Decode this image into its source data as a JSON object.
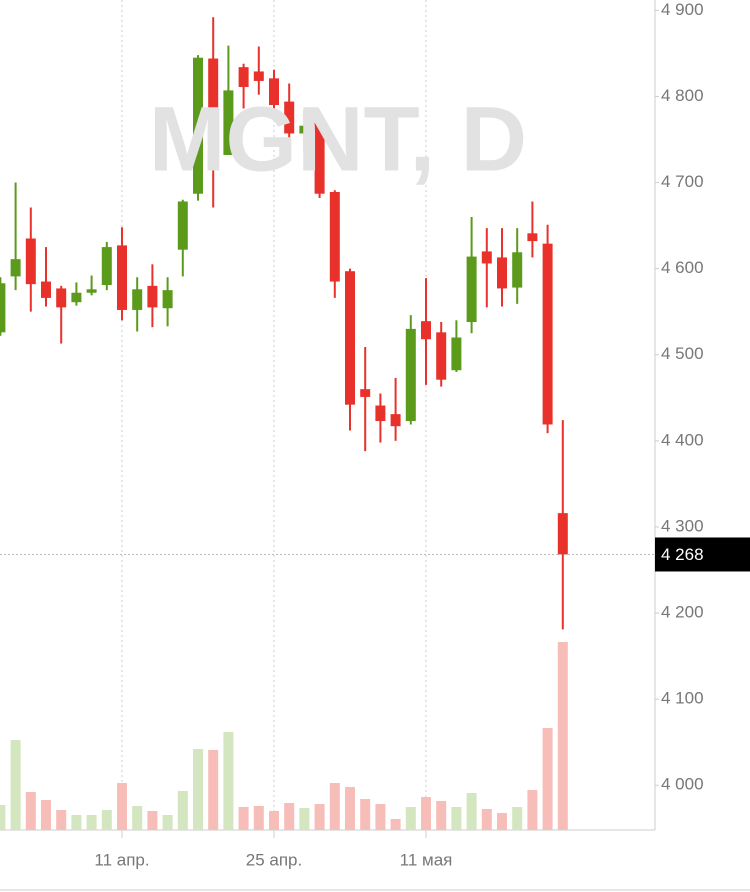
{
  "chart_data": {
    "type": "candlestick",
    "title": "MGNT, D",
    "categories": [
      null,
      null,
      null,
      null,
      null,
      null,
      null,
      null,
      "11 апр.",
      null,
      null,
      null,
      null,
      null,
      null,
      null,
      null,
      null,
      "25 апр.",
      null,
      null,
      null,
      null,
      null,
      null,
      null,
      null,
      null,
      "11 мая",
      null,
      null,
      null,
      null,
      null,
      null,
      null,
      null,
      null
    ],
    "open": [
      4526,
      4591,
      4635,
      4585,
      4577,
      4561,
      4572,
      4581,
      4627,
      4552,
      4580,
      4554,
      4622,
      4687,
      4844,
      4732,
      4834,
      4829,
      4821,
      4794,
      4757,
      4771,
      4689,
      4597,
      4460,
      4441,
      4431,
      4423,
      4539,
      4526,
      4482,
      4538,
      4620,
      4613,
      4578,
      4641,
      4629,
      4316
    ],
    "high": [
      4590,
      4700,
      4671,
      4625,
      4580,
      4584,
      4592,
      4631,
      4648,
      4590,
      4605,
      4590,
      4680,
      4848,
      4892,
      4859,
      4838,
      4858,
      4831,
      4815,
      4784,
      4776,
      4691,
      4600,
      4509,
      4455,
      4473,
      4546,
      4589,
      4538,
      4540,
      4660,
      4647,
      4647,
      4647,
      4678,
      4651,
      4424
    ],
    "low": [
      4522,
      4575,
      4550,
      4556,
      4513,
      4557,
      4569,
      4575,
      4540,
      4527,
      4532,
      4533,
      4591,
      4679,
      4671,
      4732,
      4786,
      4802,
      4780,
      4729,
      4737,
      4682,
      4566,
      4412,
      4388,
      4398,
      4400,
      4419,
      4465,
      4463,
      4480,
      4525,
      4555,
      4556,
      4559,
      4613,
      4409,
      4181
    ],
    "close": [
      4583,
      4611,
      4582,
      4566,
      4555,
      4572,
      4576,
      4625,
      4552,
      4576,
      4555,
      4575,
      4678,
      4845,
      4732,
      4807,
      4811,
      4818,
      4790,
      4757,
      4766,
      4687,
      4585,
      4442,
      4451,
      4423,
      4417,
      4530,
      4518,
      4471,
      4520,
      4614,
      4606,
      4577,
      4619,
      4632,
      4419,
      4268
    ],
    "volume": [
      25,
      90,
      38,
      30,
      20,
      15,
      15,
      20,
      47,
      24,
      19,
      15,
      39,
      81,
      80,
      98,
      23,
      24,
      19,
      27,
      22,
      26,
      47,
      43,
      31,
      26,
      11,
      23,
      33,
      29,
      23,
      37,
      21,
      17,
      23,
      40,
      102,
      188
    ],
    "up_color": "#5b9a1b",
    "down_color": "#e8312a",
    "up_volume_color": "#d3e6bf",
    "down_volume_color": "#f7bdb9",
    "ylim": [
      3948,
      4912
    ],
    "yticks": [
      {
        "value": 4000,
        "label": "4 000"
      },
      {
        "value": 4100,
        "label": "4 100"
      },
      {
        "value": 4200,
        "label": "4 200"
      },
      {
        "value": 4300,
        "label": "4 300"
      },
      {
        "value": 4400,
        "label": "4 400"
      },
      {
        "value": 4500,
        "label": "4 500"
      },
      {
        "value": 4600,
        "label": "4 600"
      },
      {
        "value": 4700,
        "label": "4 700"
      },
      {
        "value": 4800,
        "label": "4 800"
      },
      {
        "value": 4900,
        "label": "4 900"
      }
    ],
    "last_price_label": "4 268",
    "grid": true
  }
}
